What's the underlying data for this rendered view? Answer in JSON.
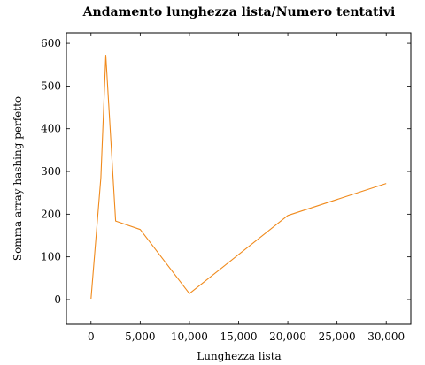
{
  "chart_data": {
    "type": "line",
    "title": "Andamento lunghezza lista/Numero tentativi",
    "xlabel": "Lunghezza lista",
    "ylabel": "Somma array hashing perfetto",
    "xlim": [
      -2500,
      32500
    ],
    "ylim": [
      -58,
      625
    ],
    "xticks": [
      0,
      5000,
      10000,
      15000,
      20000,
      25000,
      30000
    ],
    "xtick_labels": [
      "0",
      "5,000",
      "10,000",
      "15,000",
      "20,000",
      "25,000",
      "30,000"
    ],
    "yticks": [
      0,
      100,
      200,
      300,
      400,
      500,
      600
    ],
    "ytick_labels": [
      "0",
      "100",
      "200",
      "300",
      "400",
      "500",
      "600"
    ],
    "grid": false,
    "series": [
      {
        "color": "#f08a1c",
        "x": [
          0,
          1000,
          1500,
          2500,
          5000,
          10000,
          20000,
          30000
        ],
        "y": [
          2,
          285,
          572,
          184,
          164,
          14,
          197,
          272
        ]
      }
    ]
  }
}
